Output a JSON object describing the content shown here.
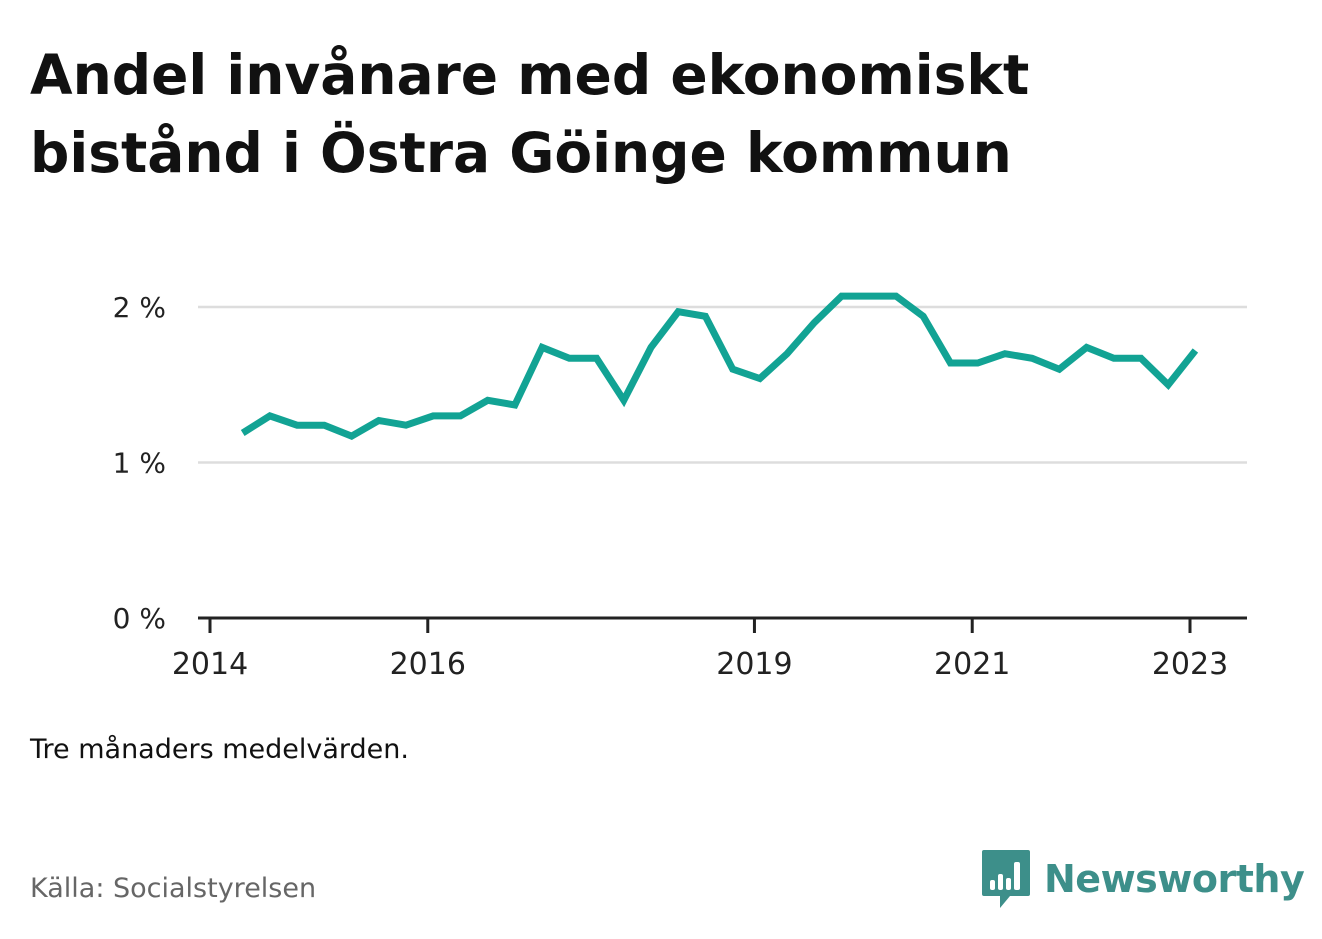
{
  "title": "Andel invånare med ekonomiskt bistånd i Östra Göinge kommun",
  "note": "Tre månaders medelvärden.",
  "source": "Källa: Socialstyrelsen",
  "brand": {
    "name": "Newsworthy",
    "icon": "bar-chart-badge-icon",
    "color": "#3d8f8a"
  },
  "colors": {
    "line": "#12a394",
    "grid": "#dddddd",
    "axis": "#222222",
    "text": "#111111"
  },
  "chart_data": {
    "type": "line",
    "title": "Andel invånare med ekonomiskt bistånd i Östra Göinge kommun",
    "xlabel": "",
    "ylabel": "",
    "ylim": [
      0,
      2
    ],
    "yticks": [
      {
        "value": 0,
        "label": "0 %"
      },
      {
        "value": 1,
        "label": "1 %"
      },
      {
        "value": 2,
        "label": "2 %"
      }
    ],
    "xticks": [
      {
        "value": 2014.0,
        "label": "2014"
      },
      {
        "value": 2016.0,
        "label": "2016"
      },
      {
        "value": 2019.0,
        "label": "2019"
      },
      {
        "value": 2021.0,
        "label": "2021"
      },
      {
        "value": 2023.0,
        "label": "2023"
      }
    ],
    "grid": true,
    "series": [
      {
        "color": "#12a394",
        "x": [
          2014.3,
          2014.55,
          2014.8,
          2015.05,
          2015.3,
          2015.55,
          2015.8,
          2016.05,
          2016.3,
          2016.55,
          2016.8,
          2017.05,
          2017.3,
          2017.55,
          2017.8,
          2018.05,
          2018.3,
          2018.55,
          2018.8,
          2019.05,
          2019.3,
          2019.55,
          2019.8,
          2020.05,
          2020.3,
          2020.55,
          2020.8,
          2021.05,
          2021.3,
          2021.55,
          2021.8,
          2022.05,
          2022.3,
          2022.55,
          2022.8,
          2023.05
        ],
        "values": [
          1.19,
          1.3,
          1.24,
          1.24,
          1.17,
          1.27,
          1.24,
          1.3,
          1.3,
          1.4,
          1.37,
          1.74,
          1.67,
          1.67,
          1.4,
          1.74,
          1.97,
          1.94,
          1.6,
          1.54,
          1.7,
          1.9,
          2.07,
          2.07,
          2.07,
          1.94,
          1.64,
          1.64,
          1.7,
          1.67,
          1.6,
          1.74,
          1.67,
          1.67,
          1.5,
          1.72
        ]
      }
    ]
  }
}
